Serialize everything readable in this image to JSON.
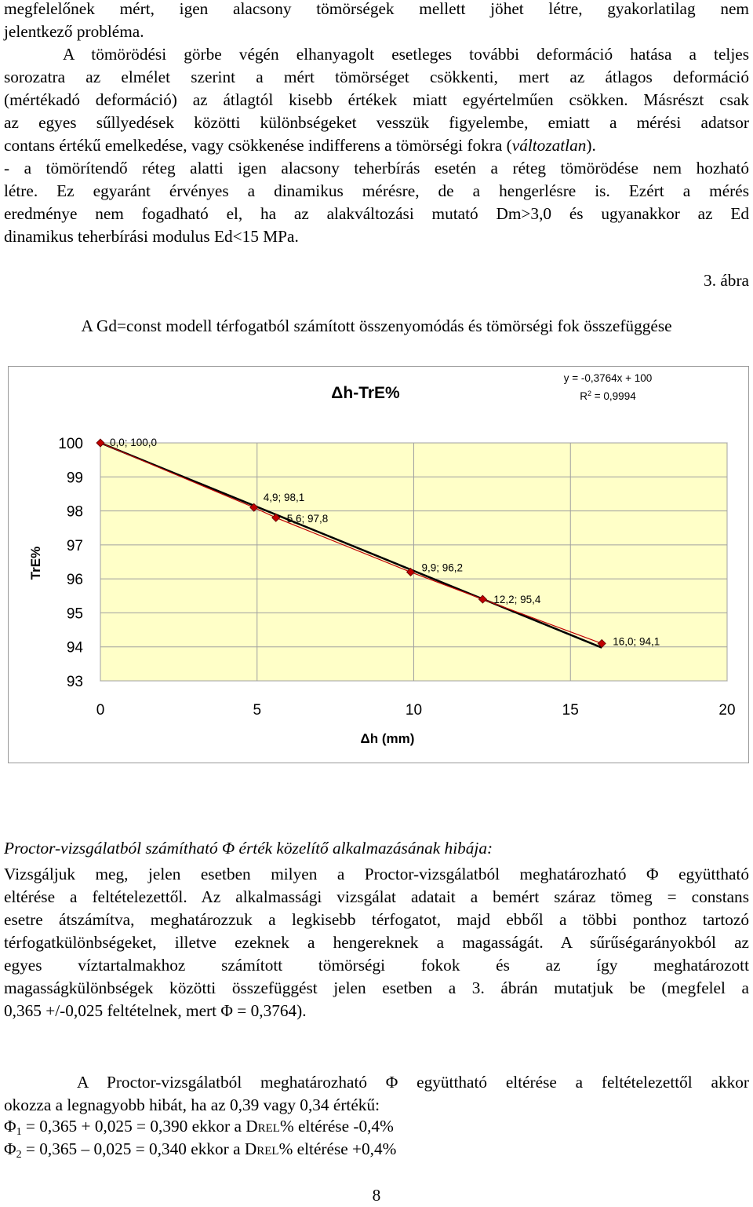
{
  "para1": [
    "megfelelőnek mért, igen alacsony tömörségek mellett jöhet létre, gyakorlatilag nem",
    "jelentkező probléma."
  ],
  "para2": [
    "A tömörödési görbe végén elhanyagolt esetleges további deformáció hatása a teljes",
    "sorozatra az elmélet szerint a mért tömörséget csökkenti, mert az átlagos deformáció",
    "(mértékadó deformáció) az átlagtól kisebb értékek miatt egyértelműen csökken. Másrészt csak",
    "az egyes sűllyedések közötti különbségeket vesszük figyelembe, emiatt a mérési adatsor",
    "contans értékű emelkedése, vagy csökkenése indifferens a tömörségi fokra ("
  ],
  "para2_italic": "változatlan",
  "para2_end": ").",
  "para3": [
    "- a tömörítendő réteg alatti igen alacsony teherbírás esetén a réteg tömörödése nem hozható",
    "létre. Ez egyaránt érvényes a dinamikus mérésre, de a hengerlésre is. Ezért a mérés",
    "eredménye nem fogadható el, ha az alakváltozási mutató Dm>3,0 és ugyanakkor az Ed",
    "dinamikus teherbírási modulus Ed<15 MPa."
  ],
  "figure_number": "3. ábra",
  "figure_caption": "A Gd=const modell térfogatból számított összenyomódás és tömörségi fok összefüggése",
  "chart_data": {
    "type": "scatter",
    "title": "Δh-TrE%",
    "xlabel": "Δh (mm)",
    "ylabel": "TrE%",
    "xlim": [
      0,
      20
    ],
    "ylim": [
      93,
      100
    ],
    "xticks": [
      "0",
      "5",
      "10",
      "15",
      "20"
    ],
    "yticks": [
      "93",
      "94",
      "95",
      "96",
      "97",
      "98",
      "99",
      "100"
    ],
    "grid": true,
    "points": [
      {
        "x": 0.0,
        "y": 100.0,
        "label": "0,0; 100,0"
      },
      {
        "x": 4.9,
        "y": 98.1,
        "label": "4,9; 98,1"
      },
      {
        "x": 5.6,
        "y": 97.8,
        "label": "5,6; 97,8"
      },
      {
        "x": 9.9,
        "y": 96.2,
        "label": "9,9; 96,2"
      },
      {
        "x": 12.2,
        "y": 95.4,
        "label": "12,2; 95,4"
      },
      {
        "x": 16.0,
        "y": 94.1,
        "label": "16,0; 94,1"
      }
    ],
    "trendline": {
      "slope": -0.3764,
      "intercept": 100,
      "x_range": [
        0,
        16
      ]
    },
    "equation": "y = -0,3764x + 100",
    "r2_label": "R",
    "r2_sup": "2",
    "r2_value": " = 0,9994",
    "plot_bg": "#ffffc8",
    "marker_color": "#c00000",
    "line_color": "#000000"
  },
  "section_title": "Proctor-vizsgálatból számítható Φ érték közelítő alkalmazásának hibája:",
  "para4": [
    "Vizsgáljuk meg, jelen esetben milyen a Proctor-vizsgálatból meghatározható Φ együttható",
    "eltérése a feltételezettől. Az alkalmassági vizsgálat adatait a bemért száraz tömeg = constans",
    "esetre átszámítva, meghatározzuk a legkisebb térfogatot, majd ebből a többi ponthoz tartozó",
    "térfogatkülönbségeket, illetve ezeknek a hengereknek a magasságát. A sűrűségarányokból az",
    "egyes víztartalmakhoz számított tömörségi fokok és az így meghatározott",
    "magasságkülönbségek közötti összefüggést jelen esetben a 3. ábrán mutatjuk be (megfelel a",
    "0,365 +/-0,025 feltételnek, mert Φ = 0,3764)."
  ],
  "para5": [
    "A Proctor-vizsgálatból meghatározható Φ együttható eltérése a feltételezettől akkor",
    "okozza a legnagyobb hibát, ha az 0,39 vagy 0,34 értékű:"
  ],
  "formula1": {
    "phi": "Φ",
    "sub": "1",
    "text": " = 0,365 + 0,025 = 0,390 ekkor a D",
    "sc": "REL",
    "tail": "% eltérése -0,4%"
  },
  "formula2": {
    "phi": "Φ",
    "sub": "2",
    "text": " = 0,365 – 0,025 = 0,340 ekkor a D",
    "sc": "REL",
    "tail": "% eltérése +0,4%"
  },
  "page_number": "8"
}
